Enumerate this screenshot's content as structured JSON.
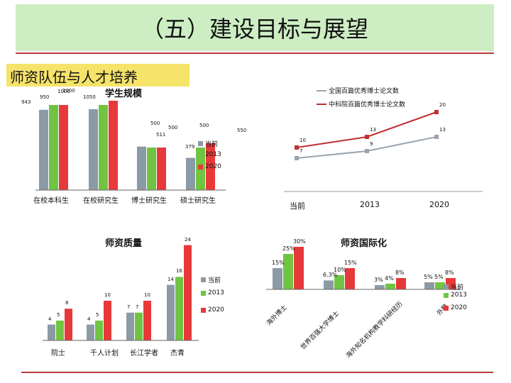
{
  "slide": {
    "title": "（五）建设目标与展望",
    "section": "师资队伍与人才培养"
  },
  "chart_data": [
    {
      "type": "bar",
      "title": "学生规模",
      "categories": [
        "在校本科生",
        "在校研究生",
        "博士研究生",
        "硕士研究生"
      ],
      "series": [
        {
          "name": "当前",
          "values": [
            943,
            950,
            511,
            379
          ]
        },
        {
          "name": "2013",
          "values": [
            1000,
            1000,
            500,
            500
          ]
        },
        {
          "name": "2020",
          "values": [
            1000,
            1050,
            500,
            550
          ]
        }
      ],
      "data_labels": [
        "943",
        "1000",
        "950",
        "500",
        "511",
        "500",
        "379",
        "550",
        "1000",
        "1050",
        "500"
      ],
      "colors": [
        "#8c9aa6",
        "#70c442",
        "#e8393a"
      ]
    },
    {
      "type": "line",
      "x": [
        "当前",
        "2013",
        "2020"
      ],
      "series": [
        {
          "name": "全国百篇优秀博士论文数",
          "values": [
            7,
            9,
            13
          ]
        },
        {
          "name": "中科院百篇优秀博士论文数",
          "values": [
            10,
            13,
            20
          ]
        }
      ],
      "colors": [
        "#9aa4ae",
        "#c0302f"
      ]
    },
    {
      "type": "bar",
      "title": "师资质量",
      "categories": [
        "院士",
        "千人计划",
        "长江学者",
        "杰青"
      ],
      "series": [
        {
          "name": "当前",
          "values": [
            4,
            4,
            7,
            14
          ]
        },
        {
          "name": "2013",
          "values": [
            5,
            5,
            7,
            16
          ]
        },
        {
          "name": "2020",
          "values": [
            8,
            10,
            10,
            24
          ]
        }
      ],
      "colors": [
        "#8c9aa6",
        "#70c442",
        "#e8393a"
      ]
    },
    {
      "type": "bar",
      "title": "师资国际化",
      "categories": [
        "海外博士",
        "世界百强大学博士",
        "海外知名机构教学科研经历",
        "外籍"
      ],
      "series": [
        {
          "name": "当前",
          "values": [
            15,
            6.3,
            3,
            5
          ]
        },
        {
          "name": "2013",
          "values": [
            25,
            10,
            4,
            5
          ]
        },
        {
          "name": "2020",
          "values": [
            30,
            15,
            8,
            8
          ]
        }
      ],
      "value_labels": [
        "15%",
        "25%",
        "30%",
        "6.3%",
        "10%",
        "15%",
        "3%",
        "4%",
        "8%",
        "5%",
        "5%",
        "8%"
      ],
      "colors": [
        "#8c9aa6",
        "#70c442",
        "#e8393a"
      ]
    }
  ],
  "legend": {
    "current": "当前",
    "y2013": "2013",
    "y2020": "2020",
    "line1": "全国百篇优秀博士论文数",
    "line2": "中科院百篇优秀博士论文数"
  }
}
